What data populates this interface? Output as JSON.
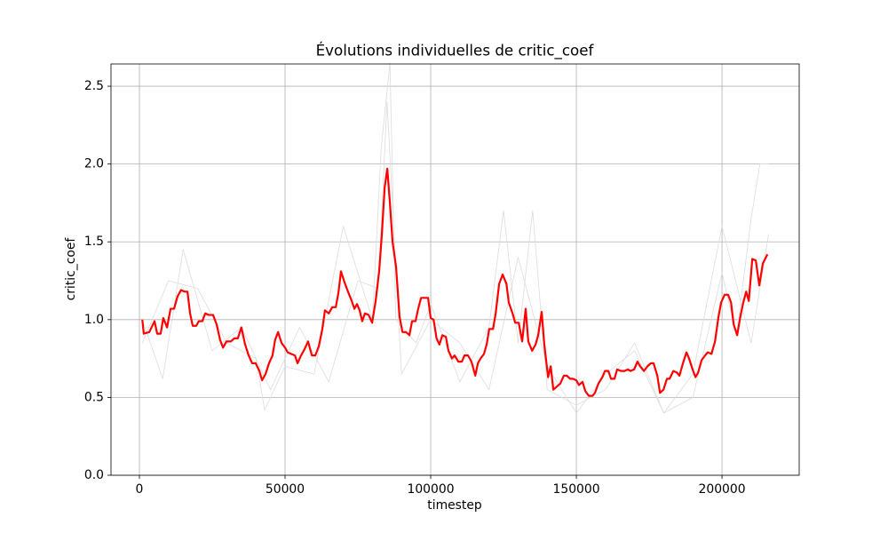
{
  "chart_data": {
    "type": "line",
    "title": "Évolutions individuelles de critic_coef",
    "xlabel": "timestep",
    "ylabel": "critic_coef",
    "xlim": [
      -9750,
      226500
    ],
    "ylim": [
      0,
      2.643
    ],
    "xticks": [
      0,
      50000,
      100000,
      150000,
      200000
    ],
    "yticks": [
      {
        "value": 0,
        "label": "0.0"
      },
      0.5,
      {
        "value": 1,
        "label": "1.0"
      },
      1.5,
      {
        "value": 2,
        "label": "2.0"
      },
      2.5
    ],
    "grid": true,
    "series": [
      {
        "color": "#dcdcdc",
        "linewidth": 0.8,
        "x": [
          1000,
          10000,
          20000,
          30000,
          40000,
          43000,
          50000,
          60000,
          70000,
          80000,
          83000,
          86000,
          88000,
          95000,
          100000,
          110000,
          120000,
          125000,
          130000,
          135000,
          140000,
          150000,
          160000,
          170000,
          180000,
          190000,
          200000,
          205000,
          210000,
          213000,
          216000
        ],
        "values": [
          0.85,
          1.25,
          1.2,
          0.85,
          0.75,
          0.42,
          0.7,
          0.65,
          1.6,
          1.0,
          2.1,
          2.65,
          1.0,
          0.85,
          1.1,
          0.6,
          0.95,
          1.7,
          0.85,
          1.7,
          0.55,
          0.45,
          0.55,
          0.85,
          0.4,
          0.5,
          1.3,
          0.9,
          1.65,
          2.0,
          2.0
        ]
      },
      {
        "color": "#dcdcdc",
        "linewidth": 0.8,
        "x": [
          1000,
          8000,
          15000,
          25000,
          35000,
          45000,
          55000,
          65000,
          75000,
          82000,
          85000,
          90000,
          100000,
          110000,
          120000,
          130000,
          140000,
          150000,
          160000,
          170000,
          180000,
          190000,
          200000,
          210000,
          216000
        ],
        "values": [
          1.0,
          0.62,
          1.45,
          0.8,
          0.95,
          0.55,
          0.95,
          0.6,
          1.25,
          1.2,
          2.4,
          0.65,
          1.0,
          0.85,
          0.55,
          1.4,
          0.7,
          0.4,
          0.65,
          0.8,
          0.4,
          0.65,
          1.6,
          0.85,
          1.55
        ]
      },
      {
        "color": "#ff0000",
        "linewidth": 2.2,
        "x": [
          1000,
          1500,
          3400,
          5200,
          6100,
          7300,
          8200,
          9500,
          10700,
          11900,
          13100,
          14300,
          15500,
          16500,
          17400,
          18300,
          19500,
          20400,
          21600,
          22600,
          23800,
          25300,
          26500,
          27700,
          28700,
          29900,
          31400,
          32600,
          33800,
          35000,
          36300,
          37500,
          38700,
          39900,
          41200,
          42100,
          43300,
          44500,
          45700,
          46600,
          47600,
          48800,
          50000,
          50900,
          52100,
          53400,
          54300,
          55500,
          56700,
          57900,
          59200,
          60400,
          61600,
          62800,
          63700,
          65000,
          66200,
          67400,
          68300,
          69200,
          70400,
          71600,
          72900,
          73800,
          74700,
          75600,
          76500,
          77400,
          78700,
          79900,
          81100,
          82300,
          83200,
          84200,
          85100,
          86000,
          86900,
          88100,
          89300,
          90300,
          91500,
          92700,
          93600,
          94800,
          95700,
          96700,
          97900,
          99100,
          100000,
          101000,
          102000,
          103000,
          104000,
          105200,
          106100,
          107300,
          108200,
          109500,
          110700,
          111600,
          112800,
          114000,
          115300,
          116200,
          117100,
          118300,
          119200,
          120100,
          121400,
          122300,
          123500,
          124700,
          126000,
          126800,
          128100,
          129000,
          130200,
          131400,
          132600,
          133500,
          134800,
          136000,
          136900,
          138100,
          139000,
          140300,
          141200,
          142100,
          143300,
          144500,
          145700,
          146700,
          147900,
          148800,
          150000,
          150900,
          152100,
          153100,
          154300,
          155500,
          156400,
          157600,
          158900,
          159800,
          161000,
          161900,
          163100,
          164000,
          165300,
          166500,
          167700,
          168600,
          169800,
          171000,
          171900,
          173200,
          174400,
          175600,
          176500,
          177800,
          178700,
          179900,
          181100,
          182000,
          183300,
          184500,
          185400,
          186600,
          187800,
          188700,
          189900,
          190900,
          191800,
          193000,
          194200,
          195100,
          196400,
          197600,
          198800,
          199700,
          200900,
          202100,
          203100,
          204000,
          205200,
          206400,
          207300,
          208300,
          209200,
          210400,
          211600,
          212800,
          214000,
          215600
        ],
        "values": [
          1.0,
          0.91,
          0.92,
          0.99,
          0.91,
          0.91,
          1.01,
          0.95,
          1.07,
          1.07,
          1.15,
          1.19,
          1.18,
          1.18,
          1.04,
          0.96,
          0.96,
          0.99,
          0.99,
          1.04,
          1.03,
          1.03,
          0.97,
          0.87,
          0.82,
          0.86,
          0.86,
          0.88,
          0.88,
          0.95,
          0.84,
          0.77,
          0.72,
          0.72,
          0.67,
          0.61,
          0.65,
          0.72,
          0.77,
          0.87,
          0.92,
          0.85,
          0.82,
          0.79,
          0.78,
          0.77,
          0.72,
          0.77,
          0.81,
          0.86,
          0.77,
          0.77,
          0.83,
          0.94,
          1.06,
          1.04,
          1.08,
          1.08,
          1.17,
          1.31,
          1.24,
          1.18,
          1.12,
          1.07,
          1.1,
          1.06,
          0.99,
          1.04,
          1.03,
          0.98,
          1.12,
          1.31,
          1.54,
          1.85,
          1.97,
          1.75,
          1.5,
          1.34,
          1.02,
          0.92,
          0.92,
          0.9,
          0.99,
          0.99,
          1.07,
          1.14,
          1.14,
          1.14,
          1.01,
          1.0,
          0.88,
          0.84,
          0.9,
          0.89,
          0.8,
          0.75,
          0.77,
          0.73,
          0.73,
          0.77,
          0.77,
          0.73,
          0.64,
          0.72,
          0.75,
          0.78,
          0.84,
          0.94,
          0.94,
          1.04,
          1.23,
          1.29,
          1.23,
          1.11,
          1.04,
          0.98,
          0.98,
          0.86,
          1.07,
          0.86,
          0.8,
          0.84,
          0.9,
          1.05,
          0.84,
          0.63,
          0.7,
          0.55,
          0.57,
          0.59,
          0.64,
          0.64,
          0.62,
          0.62,
          0.61,
          0.58,
          0.6,
          0.54,
          0.51,
          0.51,
          0.53,
          0.59,
          0.63,
          0.67,
          0.67,
          0.62,
          0.62,
          0.68,
          0.67,
          0.67,
          0.68,
          0.67,
          0.68,
          0.73,
          0.7,
          0.67,
          0.7,
          0.72,
          0.72,
          0.64,
          0.53,
          0.55,
          0.62,
          0.62,
          0.67,
          0.66,
          0.64,
          0.72,
          0.79,
          0.75,
          0.68,
          0.63,
          0.66,
          0.74,
          0.77,
          0.79,
          0.78,
          0.86,
          1.02,
          1.11,
          1.16,
          1.16,
          1.11,
          0.97,
          0.9,
          1.03,
          1.11,
          1.18,
          1.12,
          1.39,
          1.38,
          1.22,
          1.36,
          1.42
        ]
      }
    ]
  }
}
